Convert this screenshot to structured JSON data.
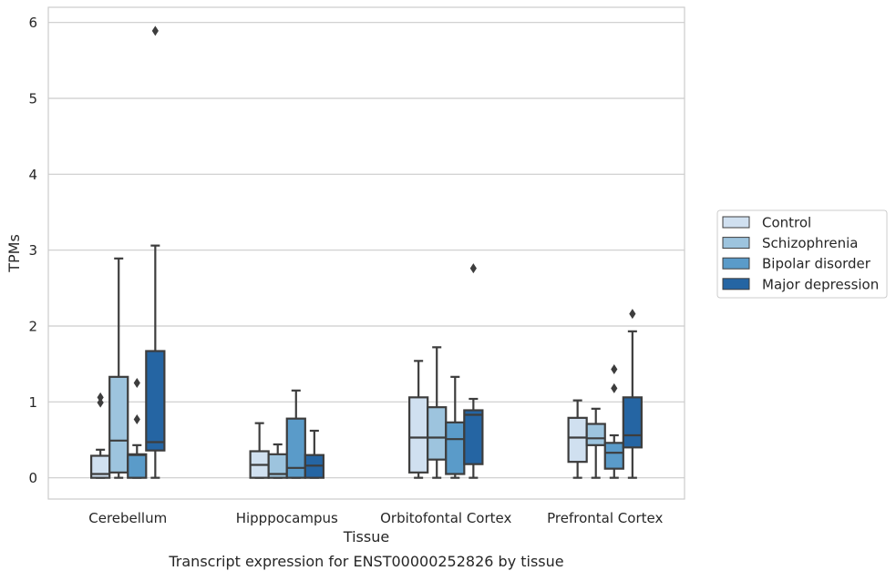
{
  "chart_data": {
    "type": "box",
    "title": "",
    "caption": "Transcript expression for ENST00000252826 by tissue",
    "xlabel": "Tissue",
    "ylabel": "TPMs",
    "ylim": [
      -0.28,
      6.2
    ],
    "yticks": [
      0,
      1,
      2,
      3,
      4,
      5,
      6
    ],
    "grid": true,
    "legend_position": "right",
    "categories": [
      "Cerebellum",
      "Hipppocampus",
      "Orbitofontal Cortex",
      "Prefrontal Cortex"
    ],
    "series": [
      {
        "name": "Control",
        "color": "#d0e0f0",
        "boxes": [
          {
            "whislo": 0,
            "q1": 0,
            "med": 0.05,
            "q3": 0.29,
            "whishi": 0.37,
            "fliers": [
              0.99,
              1.06
            ]
          },
          {
            "whislo": 0,
            "q1": 0,
            "med": 0.17,
            "q3": 0.35,
            "whishi": 0.72,
            "fliers": []
          },
          {
            "whislo": 0,
            "q1": 0.07,
            "med": 0.53,
            "q3": 1.06,
            "whishi": 1.54,
            "fliers": []
          },
          {
            "whislo": 0,
            "q1": 0.21,
            "med": 0.53,
            "q3": 0.79,
            "whishi": 1.02,
            "fliers": []
          }
        ]
      },
      {
        "name": "Schizophrenia",
        "color": "#9dc4de",
        "boxes": [
          {
            "whislo": 0,
            "q1": 0.07,
            "med": 0.49,
            "q3": 1.33,
            "whishi": 2.89,
            "fliers": []
          },
          {
            "whislo": 0,
            "q1": 0,
            "med": 0.05,
            "q3": 0.31,
            "whishi": 0.44,
            "fliers": []
          },
          {
            "whislo": 0,
            "q1": 0.24,
            "med": 0.53,
            "q3": 0.93,
            "whishi": 1.72,
            "fliers": []
          },
          {
            "whislo": 0,
            "q1": 0.43,
            "med": 0.52,
            "q3": 0.71,
            "whishi": 0.91,
            "fliers": []
          }
        ]
      },
      {
        "name": "Bipolar disorder",
        "color": "#5a9bc9",
        "boxes": [
          {
            "whislo": 0,
            "q1": 0,
            "med": 0.3,
            "q3": 0.31,
            "whishi": 0.43,
            "fliers": [
              0.77,
              1.25
            ]
          },
          {
            "whislo": 0,
            "q1": 0,
            "med": 0.13,
            "q3": 0.78,
            "whishi": 1.15,
            "fliers": []
          },
          {
            "whislo": 0,
            "q1": 0.05,
            "med": 0.51,
            "q3": 0.73,
            "whishi": 1.33,
            "fliers": []
          },
          {
            "whislo": 0,
            "q1": 0.12,
            "med": 0.33,
            "q3": 0.46,
            "whishi": 0.56,
            "fliers": [
              1.18,
              1.43
            ]
          }
        ]
      },
      {
        "name": "Major depression",
        "color": "#2565a3",
        "boxes": [
          {
            "whislo": 0,
            "q1": 0.36,
            "med": 0.47,
            "q3": 1.67,
            "whishi": 3.06,
            "fliers": [
              5.89
            ]
          },
          {
            "whislo": 0,
            "q1": 0,
            "med": 0.16,
            "q3": 0.3,
            "whishi": 0.62,
            "fliers": []
          },
          {
            "whislo": 0,
            "q1": 0.18,
            "med": 0.83,
            "q3": 0.89,
            "whishi": 1.04,
            "fliers": [
              2.76
            ]
          },
          {
            "whislo": 0,
            "q1": 0.4,
            "med": 0.56,
            "q3": 1.06,
            "whishi": 1.93,
            "fliers": [
              2.16
            ]
          }
        ]
      }
    ],
    "colors": {
      "edge": "#3d3d3d",
      "grid": "#cccccc",
      "text": "#262626"
    }
  }
}
